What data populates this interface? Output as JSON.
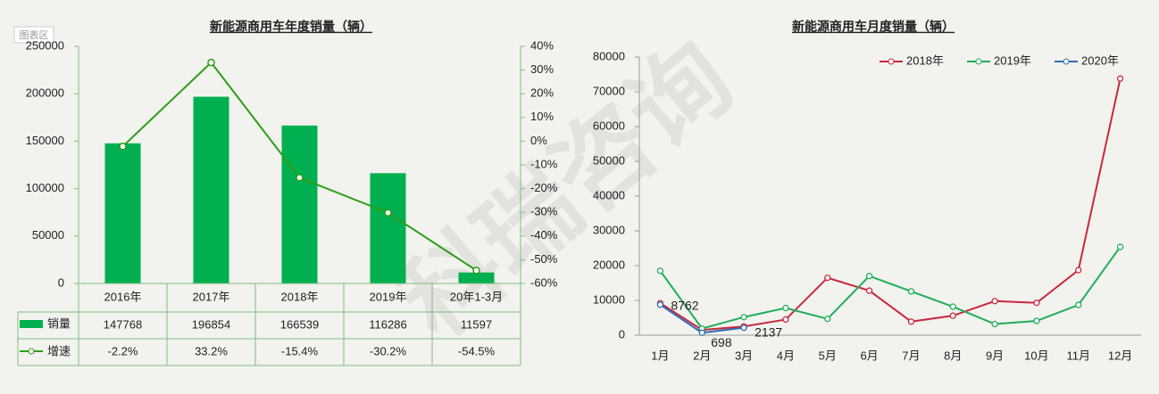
{
  "chart_area_label": "图表区",
  "watermark": "科瑞咨询",
  "chart_data": [
    {
      "type": "bar_line",
      "title": "新能源商用车年度销量（辆）",
      "categories": [
        "2016年",
        "2017年",
        "2018年",
        "2019年",
        "20年1-3月"
      ],
      "series": [
        {
          "name": "销量",
          "color": "#00b050",
          "values": [
            147768,
            196854,
            166539,
            116286,
            11597
          ]
        },
        {
          "name": "增速",
          "color": "#2e9e1a",
          "axis": "y2",
          "values": [
            -2.2,
            33.2,
            -15.4,
            -30.2,
            -54.5
          ],
          "value_labels": [
            "-2.2%",
            "33.2%",
            "-15.4%",
            "-30.2%",
            "-54.5%"
          ]
        }
      ],
      "ylim": [
        0,
        250000
      ],
      "yticks": [
        0,
        50000,
        100000,
        150000,
        200000,
        250000
      ],
      "y2lim": [
        -60,
        40
      ],
      "y2ticks": [
        {
          "value": -60,
          "label": "-60%"
        },
        {
          "value": -50,
          "label": "-50%"
        },
        {
          "value": -40,
          "label": "-40%"
        },
        {
          "value": -30,
          "label": "-30%"
        },
        {
          "value": -20,
          "label": "-20%"
        },
        {
          "value": -10,
          "label": "-10%"
        },
        {
          "value": 0,
          "label": "0%"
        },
        {
          "value": 10,
          "label": "10%"
        },
        {
          "value": 20,
          "label": "20%"
        },
        {
          "value": 30,
          "label": "30%"
        },
        {
          "value": 40,
          "label": "40%"
        }
      ],
      "data_table": true
    },
    {
      "type": "line",
      "title": "新能源商用车月度销量（辆）",
      "categories": [
        "1月",
        "2月",
        "3月",
        "4月",
        "5月",
        "6月",
        "7月",
        "8月",
        "9月",
        "10月",
        "11月",
        "12月"
      ],
      "series": [
        {
          "name": "2018年",
          "color": "#c8283c",
          "values": [
            9200,
            1500,
            2500,
            4500,
            16500,
            12800,
            3900,
            5600,
            9800,
            9300,
            18700,
            73800
          ]
        },
        {
          "name": "2019年",
          "color": "#1fae5a",
          "values": [
            18500,
            1900,
            5200,
            7800,
            4700,
            17000,
            12600,
            8200,
            3200,
            4100,
            8700,
            25400
          ]
        },
        {
          "name": "2020年",
          "color": "#2f6db5",
          "values": [
            8762,
            698,
            2137,
            null,
            null,
            null,
            null,
            null,
            null,
            null,
            null,
            null
          ],
          "data_labels": true
        }
      ],
      "ylim": [
        0,
        80000
      ],
      "yticks": [
        0,
        10000,
        20000,
        30000,
        40000,
        50000,
        60000,
        70000,
        80000
      ],
      "legend": "top-right"
    }
  ]
}
